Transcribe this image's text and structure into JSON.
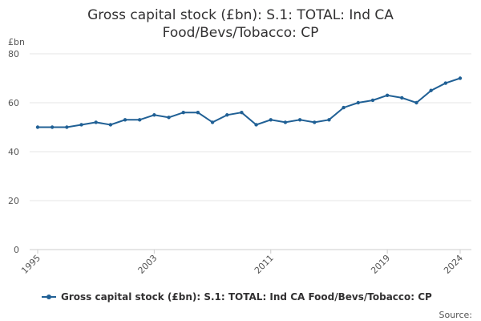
{
  "title_lines": [
    "Gross capital stock (£bn): S.1: TOTAL: Ind CA",
    "Food/Bevs/Tobacco: CP"
  ],
  "source_label": "Source:",
  "colors": {
    "series": "#206095",
    "grid": "#e6e6e6",
    "axis": "#cccccc",
    "text": "#323132"
  },
  "chart_data": {
    "type": "line",
    "title": "Gross capital stock (£bn): S.1: TOTAL: Ind CA Food/Bevs/Tobacco: CP",
    "ylabel": "£bn",
    "xlabel": "",
    "ylim": [
      0,
      80
    ],
    "yticks": [
      0,
      20,
      40,
      60,
      80
    ],
    "xlim": [
      1995,
      2024
    ],
    "xticks": [
      1995,
      2003,
      2011,
      2019,
      2024
    ],
    "grid": true,
    "legend_position": "bottom",
    "x": [
      1995,
      1996,
      1997,
      1998,
      1999,
      2000,
      2001,
      2002,
      2003,
      2004,
      2005,
      2006,
      2007,
      2008,
      2009,
      2010,
      2011,
      2012,
      2013,
      2014,
      2015,
      2016,
      2017,
      2018,
      2019,
      2020,
      2021,
      2022,
      2023,
      2024
    ],
    "series": [
      {
        "name": "Gross capital stock (£bn): S.1: TOTAL: Ind CA Food/Bevs/Tobacco: CP",
        "values": [
          50,
          50,
          50,
          51,
          52,
          51,
          53,
          53,
          55,
          54,
          56,
          56,
          52,
          55,
          56,
          51,
          53,
          52,
          53,
          52,
          53,
          58,
          60,
          61,
          63,
          62,
          60,
          65,
          68,
          70
        ]
      }
    ]
  }
}
